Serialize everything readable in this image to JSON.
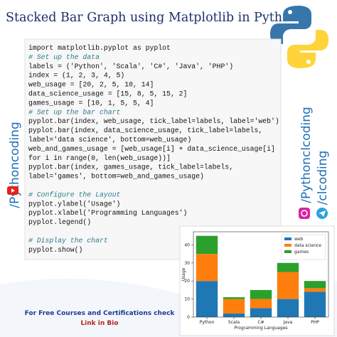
{
  "header": {
    "title": "Stacked Bar Graph using Matplotlib in Python"
  },
  "code": {
    "blocks": [
      [
        "import matplotlib.pyplot as pyplot",
        "# Set up the data",
        "labels = ('Python', 'Scala', 'C#', 'Java', 'PHP')",
        "index = (1, 2, 3, 4, 5)",
        "web_usage = [20, 2, 5, 10, 14]",
        "data_science_usage = [15, 8, 5, 15, 2]",
        "games_usage = [10, 1, 5, 5, 4]",
        "# Set up the bar chart",
        "pyplot.bar(index, web_usage, tick_label=labels, label='web')",
        "pyplot.bar(index, data_science_usage, tick_label=labels,",
        "label='data science', bottom=web_usage)",
        "web_and_games_usage = [web_usage[i] + data_science_usage[i]",
        "for i in range(0, len(web_usage))]",
        "pyplot.bar(index, games_usage, tick_label=labels,",
        "label='games', bottom=web_and_games_usage)"
      ],
      [
        "# Configure the Layout",
        "pyplot.ylabel('Usage')",
        "pyplot.xlabel('Programming Languages')",
        "pyplot.legend()"
      ],
      [
        "# Display the chart",
        "pyplot.show()"
      ]
    ]
  },
  "sidebar": {
    "left": "/Pythoncoding",
    "right": [
      "/Pythonclcoding",
      "/clcoding"
    ]
  },
  "footer": {
    "line1": "For Free Courses and Certifications check",
    "line2": "Link in Bio"
  },
  "chart_data": {
    "type": "bar",
    "stacked": true,
    "categories": [
      "Python",
      "Scala",
      "C#",
      "Java",
      "PHP"
    ],
    "series": [
      {
        "name": "web",
        "color": "#1f77b4",
        "values": [
          20,
          2,
          5,
          10,
          14
        ]
      },
      {
        "name": "data science",
        "color": "#ff7f0e",
        "values": [
          15,
          8,
          5,
          15,
          2
        ]
      },
      {
        "name": "games",
        "color": "#2ca02c",
        "values": [
          10,
          1,
          5,
          5,
          4
        ]
      }
    ],
    "ylim": [
      0,
      47.25
    ],
    "yticks": [
      0,
      10,
      20,
      30,
      40
    ],
    "xlabel": "Programming Languages",
    "ylabel": "Usage",
    "legend": "upper right"
  }
}
